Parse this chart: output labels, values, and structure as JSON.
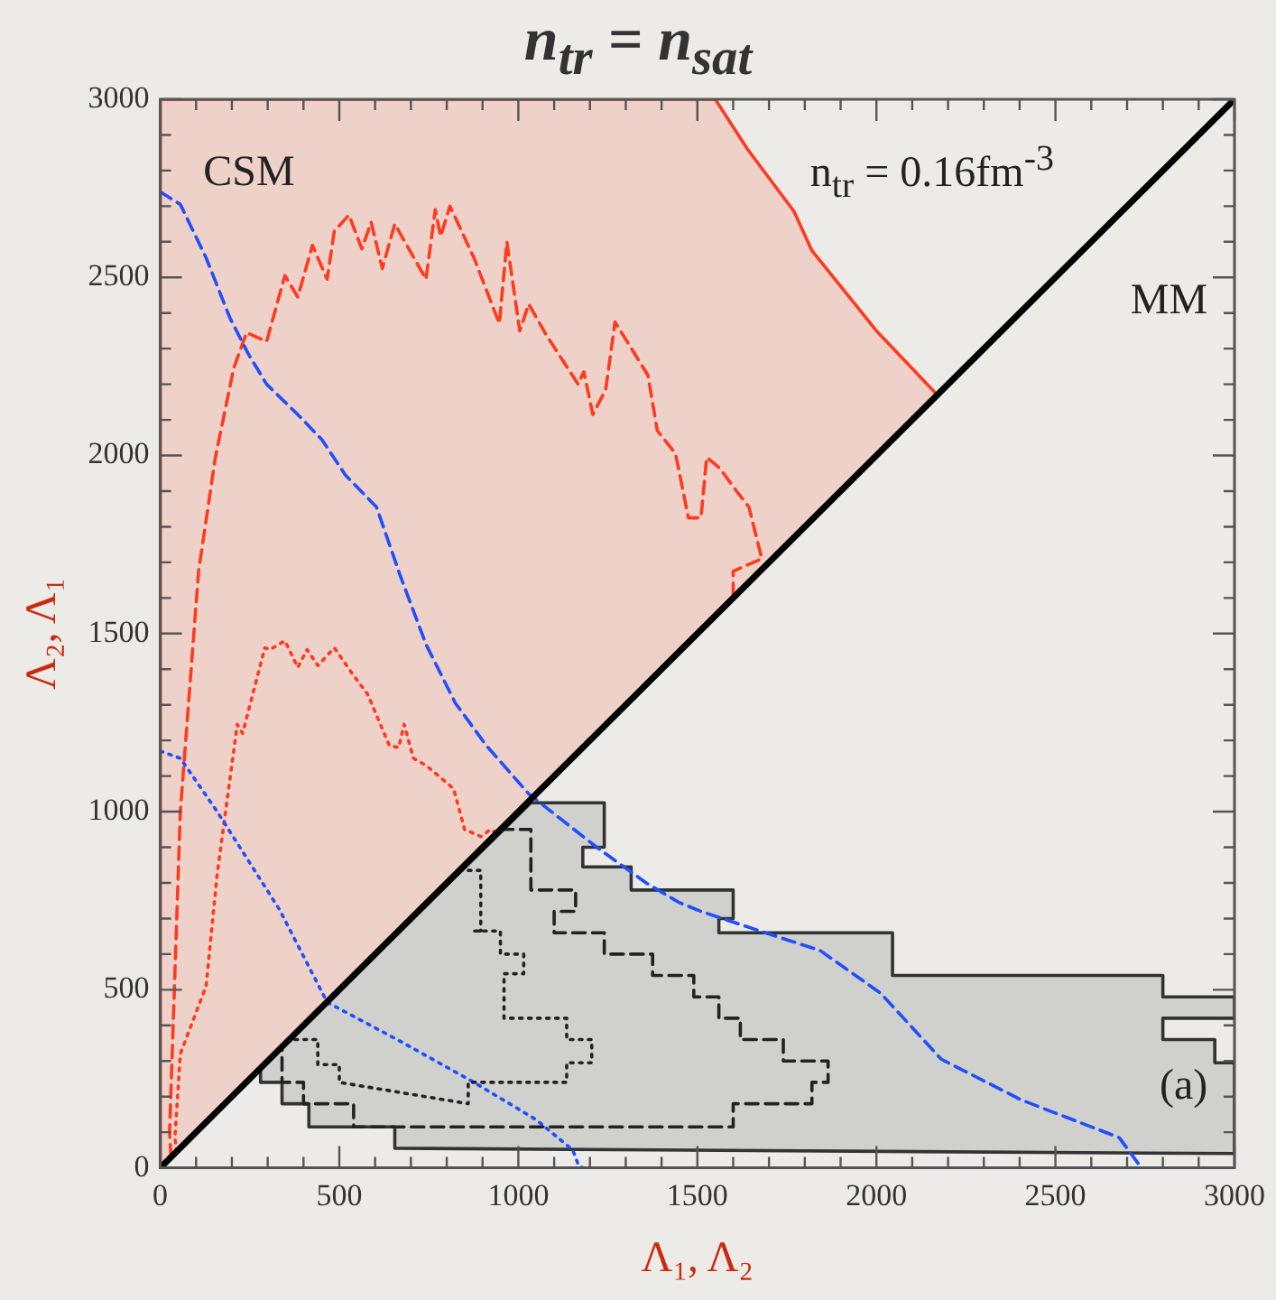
{
  "chart_data": {
    "type": "line",
    "title": "n$_{tr}$ = n$_{sat}$",
    "xlabel": "Λ₁, Λ₂",
    "ylabel": "Λ₂, Λ₁",
    "xlim": [
      0,
      3000
    ],
    "ylim": [
      0,
      3000
    ],
    "xticks": [
      0,
      {
        "value": 100,
        "label": null
      },
      {
        "value": 200,
        "label": null
      },
      {
        "value": 300,
        "label": null
      },
      {
        "value": 400,
        "label": null
      },
      500,
      {
        "value": 600,
        "label": null
      },
      {
        "value": 700,
        "label": null
      },
      {
        "value": 800,
        "label": null
      },
      {
        "value": 900,
        "label": null
      },
      1000,
      {
        "value": 1100,
        "label": null
      },
      {
        "value": 1200,
        "label": null
      },
      {
        "value": 1300,
        "label": null
      },
      {
        "value": 1400,
        "label": null
      },
      1500,
      {
        "value": 1600,
        "label": null
      },
      {
        "value": 1700,
        "label": null
      },
      {
        "value": 1800,
        "label": null
      },
      {
        "value": 1900,
        "label": null
      },
      2000,
      {
        "value": 2100,
        "label": null
      },
      {
        "value": 2200,
        "label": null
      },
      {
        "value": 2300,
        "label": null
      },
      {
        "value": 2400,
        "label": null
      },
      2500,
      {
        "value": 2600,
        "label": null
      },
      {
        "value": 2700,
        "label": null
      },
      {
        "value": 2800,
        "label": null
      },
      {
        "value": 2900,
        "label": null
      },
      3000
    ],
    "yticks": [
      0,
      {
        "value": 100,
        "label": null
      },
      {
        "value": 200,
        "label": null
      },
      {
        "value": 300,
        "label": null
      },
      {
        "value": 400,
        "label": null
      },
      500,
      {
        "value": 600,
        "label": null
      },
      {
        "value": 700,
        "label": null
      },
      {
        "value": 800,
        "label": null
      },
      {
        "value": 900,
        "label": null
      },
      1000,
      {
        "value": 1100,
        "label": null
      },
      {
        "value": 1200,
        "label": null
      },
      {
        "value": 1300,
        "label": null
      },
      {
        "value": 1400,
        "label": null
      },
      1500,
      {
        "value": 1600,
        "label": null
      },
      {
        "value": 1700,
        "label": null
      },
      {
        "value": 1800,
        "label": null
      },
      {
        "value": 1900,
        "label": null
      },
      2000,
      {
        "value": 2100,
        "label": null
      },
      {
        "value": 2200,
        "label": null
      },
      {
        "value": 2300,
        "label": null
      },
      {
        "value": 2400,
        "label": null
      },
      2500,
      {
        "value": 2600,
        "label": null
      },
      {
        "value": 2700,
        "label": null
      },
      {
        "value": 2800,
        "label": null
      },
      {
        "value": 2900,
        "label": null
      },
      3000
    ],
    "legend": false,
    "marker": "none",
    "series": [
      {
        "type": "area",
        "color": "#ff3a1e",
        "line_style": "solid",
        "x": [
          0,
          0,
          1550,
          1640,
          1770,
          1820,
          2000,
          2170,
          0
        ],
        "values": [
          0,
          3000,
          3000,
          2860,
          2685,
          2575,
          2350,
          2170,
          0
        ]
      },
      {
        "type": "area",
        "color": "#333333",
        "line_style": "solid",
        "x": [
          1035,
          1240,
          1240,
          1180,
          1180,
          1315,
          1315,
          1600,
          1600,
          1560,
          1560,
          2045,
          2045,
          2800,
          2800,
          3000,
          3000,
          2800,
          2800,
          2945,
          2945,
          3000,
          3000,
          655,
          655,
          415,
          415,
          340,
          340,
          280,
          280,
          1035
        ],
        "values": [
          1025,
          1025,
          900,
          900,
          845,
          845,
          780,
          780,
          700,
          700,
          660,
          660,
          540,
          540,
          480,
          480,
          420,
          420,
          360,
          360,
          295,
          295,
          40,
          55,
          115,
          115,
          180,
          180,
          240,
          240,
          280,
          1025
        ]
      },
      {
        "color": "#ff3a1e",
        "line_style": "dashed",
        "x": [
          30,
          26,
          56,
          107,
          154,
          205,
          241,
          297,
          348,
          384,
          425,
          466,
          486,
          527,
          563,
          589,
          620,
          655,
          742,
          768,
          783,
          809,
          876,
          947,
          968,
          1004,
          1029,
          1080,
          1167,
          1183,
          1208,
          1244,
          1270,
          1362,
          1388,
          1439,
          1475,
          1510,
          1526,
          1562,
          1613,
          1644,
          1680,
          1600,
          1600
        ],
        "values": [
          30,
          100,
          1000,
          1675,
          1995,
          2245,
          2345,
          2320,
          2505,
          2445,
          2590,
          2495,
          2630,
          2675,
          2580,
          2655,
          2525,
          2650,
          2495,
          2690,
          2615,
          2700,
          2555,
          2370,
          2600,
          2350,
          2425,
          2335,
          2200,
          2235,
          2115,
          2185,
          2375,
          2225,
          2070,
          2005,
          1825,
          1825,
          1995,
          1965,
          1895,
          1855,
          1710,
          1675,
          1600
        ]
      },
      {
        "color": "#ff3a1e",
        "line_style": "dotted",
        "x": [
          45,
          41,
          56,
          128,
          159,
          215,
          230,
          292,
          307,
          348,
          384,
          410,
          440,
          486,
          538,
          579,
          640,
          666,
          681,
          707,
          742,
          819,
          850,
          896,
          922,
          940
        ],
        "values": [
          45,
          85,
          320,
          510,
          825,
          1245,
          1220,
          1460,
          1455,
          1480,
          1405,
          1455,
          1410,
          1460,
          1385,
          1330,
          1185,
          1180,
          1245,
          1150,
          1130,
          1065,
          950,
          930,
          950,
          940
        ]
      },
      {
        "color": "#1f4fff",
        "line_style": "dashed",
        "x": [
          0,
          56,
          128,
          195,
          246,
          297,
          384,
          451,
          517,
          604,
          671,
          742,
          824,
          911,
          1029,
          1219,
          1357,
          1449,
          1510,
          1690,
          1843,
          2012,
          2181,
          2406,
          2678,
          2729,
          2740
        ],
        "values": [
          2740,
          2705,
          2555,
          2385,
          2285,
          2200,
          2115,
          2045,
          1945,
          1855,
          1660,
          1470,
          1305,
          1185,
          1050,
          900,
          800,
          745,
          720,
          660,
          610,
          490,
          305,
          190,
          85,
          15,
          0
        ]
      },
      {
        "color": "#1f4fff",
        "line_style": "dotted",
        "x": [
          0,
          56,
          159,
          333,
          466,
          671,
          876,
          1050,
          1152,
          1167,
          1180
        ],
        "values": [
          1170,
          1150,
          1000,
          725,
          465,
          355,
          240,
          135,
          50,
          10,
          0
        ]
      },
      {
        "color": "#222222",
        "line_style": "dashed",
        "x": [
          950,
          1035,
          1035,
          1160,
          1160,
          1100,
          1100,
          1240,
          1240,
          1375,
          1375,
          1490,
          1490,
          1560,
          1560,
          1620,
          1620,
          1740,
          1740,
          1865,
          1865,
          1820,
          1820,
          1600,
          1600,
          540,
          540,
          400,
          400,
          340,
          340
        ],
        "values": [
          950,
          950,
          780,
          780,
          720,
          720,
          660,
          660,
          600,
          600,
          540,
          540,
          480,
          480,
          420,
          420,
          360,
          360,
          300,
          300,
          240,
          240,
          180,
          180,
          115,
          115,
          180,
          180,
          240,
          240,
          340
        ]
      },
      {
        "color": "#222222",
        "line_style": "dotted",
        "x": [
          835,
          895,
          895,
          875,
          875,
          950,
          950,
          1015,
          1015,
          960,
          960,
          1135,
          1135,
          1205,
          1205,
          1135,
          1135,
          860,
          860,
          500,
          500,
          440,
          440,
          360
        ],
        "values": [
          835,
          835,
          665,
          665,
          665,
          665,
          600,
          600,
          545,
          545,
          420,
          420,
          360,
          360,
          295,
          295,
          240,
          240,
          180,
          240,
          290,
          290,
          360,
          360
        ]
      },
      {
        "color": "#000000",
        "line_style": "solid",
        "x": [
          0,
          3000
        ],
        "values": [
          0,
          3000
        ]
      }
    ],
    "annotations": [
      "CSM",
      "MM",
      "n$_{tr}$ = 0.16fm$^{-3}$",
      "(a)"
    ]
  }
}
